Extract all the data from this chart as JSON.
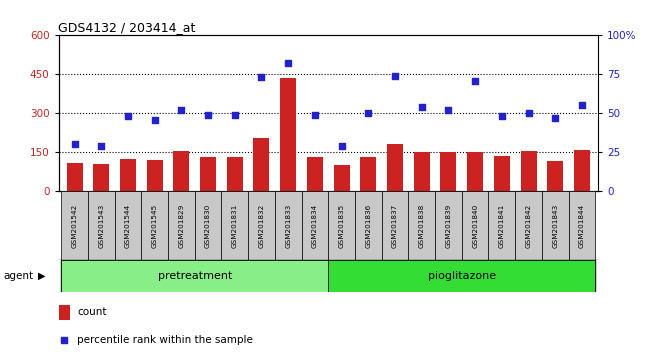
{
  "title": "GDS4132 / 203414_at",
  "samples": [
    "GSM201542",
    "GSM201543",
    "GSM201544",
    "GSM201545",
    "GSM201829",
    "GSM201830",
    "GSM201831",
    "GSM201832",
    "GSM201833",
    "GSM201834",
    "GSM201835",
    "GSM201836",
    "GSM201837",
    "GSM201838",
    "GSM201839",
    "GSM201840",
    "GSM201841",
    "GSM201842",
    "GSM201843",
    "GSM201844"
  ],
  "counts": [
    110,
    105,
    125,
    120,
    155,
    130,
    130,
    205,
    435,
    130,
    100,
    130,
    180,
    150,
    150,
    150,
    135,
    155,
    115,
    160
  ],
  "percentiles": [
    30,
    29,
    48,
    46,
    52,
    49,
    49,
    73,
    82,
    49,
    29,
    50,
    74,
    54,
    52,
    71,
    48,
    50,
    47,
    55
  ],
  "pretreatment_count": 10,
  "pioglitazone_count": 10,
  "ylim_left": [
    0,
    600
  ],
  "ylim_right": [
    0,
    100
  ],
  "yticks_left": [
    0,
    150,
    300,
    450,
    600
  ],
  "yticks_right": [
    0,
    25,
    50,
    75,
    100
  ],
  "bar_color": "#cc2222",
  "dot_color": "#2222cc",
  "pretreatment_color": "#88ee88",
  "pioglitazone_color": "#33dd33",
  "sample_cell_color": "#c8c8c8",
  "legend_count_label": "count",
  "legend_pct_label": "percentile rank within the sample",
  "hline_y": [
    150,
    300,
    450
  ],
  "hline_color": "#000000"
}
